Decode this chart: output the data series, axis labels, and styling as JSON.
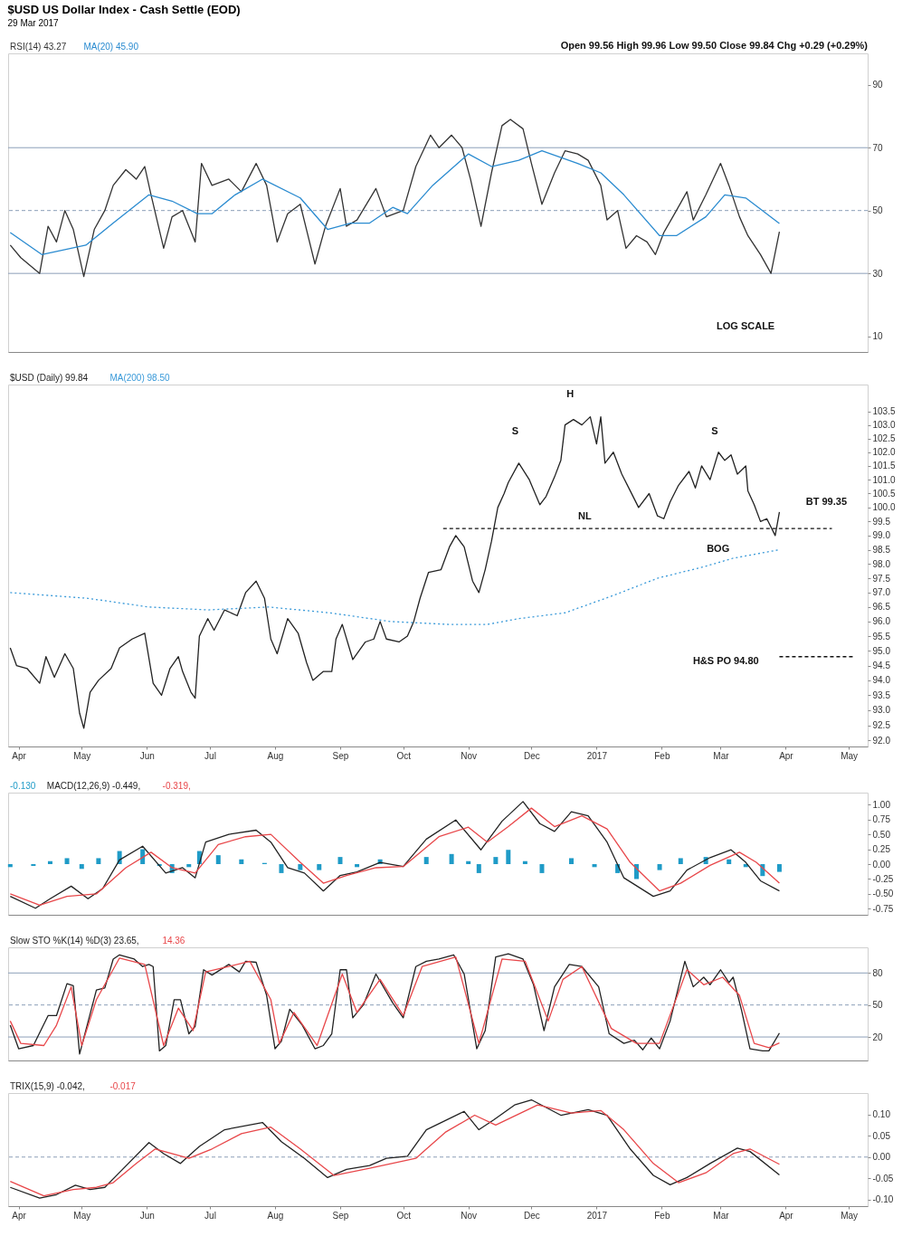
{
  "chart_data": [
    {
      "type": "line",
      "title": "$USD US Dollar Index - Cash Settle (EOD)",
      "subtitle": "29 Mar 2017",
      "legend": "top left",
      "tick_labels": "y",
      "annotations": [
        "Open 99.56  High 99.96  Low 99.50  Close 99.84  Chg +0.29 (+0.29%)",
        "LOG SCALE"
      ],
      "xlim": [
        "2016-03-27",
        "2017-05-10"
      ],
      "ylim": [
        5,
        100
      ],
      "yticks": [
        10,
        30,
        50,
        70,
        90
      ],
      "ref_lines": [
        {
          "axis": "y",
          "value": 70,
          "color": "#8c9fb8",
          "line_style": "solid"
        },
        {
          "axis": "y",
          "value": 50,
          "color": "#8c9fb8",
          "line_style": "dashed"
        },
        {
          "axis": "y",
          "value": 30,
          "color": "#8c9fb8",
          "line_style": "solid"
        }
      ],
      "series": [
        {
          "name": "RSI(14) 43.27",
          "color": "#333333",
          "x": [
            "2016-03-28",
            "2016-04-02",
            "2016-04-11",
            "2016-04-15",
            "2016-04-19",
            "2016-04-23",
            "2016-04-27",
            "2016-05-02",
            "2016-05-07",
            "2016-05-12",
            "2016-05-16",
            "2016-05-22",
            "2016-05-27",
            "2016-05-31",
            "2016-06-03",
            "2016-06-09",
            "2016-06-13",
            "2016-06-18",
            "2016-06-24",
            "2016-06-27",
            "2016-07-02",
            "2016-07-10",
            "2016-07-16",
            "2016-07-23",
            "2016-07-28",
            "2016-08-02",
            "2016-08-07",
            "2016-08-13",
            "2016-08-20",
            "2016-08-25",
            "2016-09-01",
            "2016-09-04",
            "2016-09-09",
            "2016-09-18",
            "2016-09-23",
            "2016-10-01",
            "2016-10-07",
            "2016-10-14",
            "2016-10-18",
            "2016-10-24",
            "2016-10-29",
            "2016-11-02",
            "2016-11-07",
            "2016-11-12",
            "2016-11-17",
            "2016-11-21",
            "2016-11-27",
            "2016-12-01",
            "2016-12-06",
            "2016-12-12",
            "2016-12-17",
            "2016-12-23",
            "2016-12-28",
            "2017-01-03",
            "2017-01-06",
            "2017-01-11",
            "2017-01-15",
            "2017-01-20",
            "2017-01-25",
            "2017-01-29",
            "2017-02-02",
            "2017-02-08",
            "2017-02-13",
            "2017-02-16",
            "2017-02-22",
            "2017-03-01",
            "2017-03-05",
            "2017-03-10",
            "2017-03-14",
            "2017-03-20",
            "2017-03-25",
            "2017-03-29"
          ],
          "values": [
            39,
            35,
            30,
            45,
            40,
            50,
            44,
            29,
            44,
            50,
            58,
            63,
            60,
            64,
            55,
            38,
            48,
            50,
            40,
            65,
            58,
            60,
            56,
            65,
            58,
            40,
            49,
            52,
            33,
            45,
            57,
            45,
            47,
            57,
            48,
            50,
            64,
            74,
            70,
            74,
            70,
            60,
            45,
            62,
            77,
            79,
            76,
            65,
            52,
            62,
            69,
            68,
            66,
            58,
            47,
            50,
            38,
            42,
            40,
            36,
            43,
            50,
            56,
            47,
            55,
            65,
            58,
            48,
            42,
            36,
            30,
            43.27
          ]
        },
        {
          "name": "MA(20) 45.90",
          "color": "#2a8bd0",
          "x": [
            "2016-03-28",
            "2016-04-12",
            "2016-05-03",
            "2016-05-16",
            "2016-06-02",
            "2016-06-13",
            "2016-06-25",
            "2016-07-02",
            "2016-07-13",
            "2016-07-26",
            "2016-08-13",
            "2016-08-26",
            "2016-09-06",
            "2016-09-15",
            "2016-09-26",
            "2016-10-03",
            "2016-10-15",
            "2016-11-01",
            "2016-11-12",
            "2016-11-25",
            "2016-12-06",
            "2016-12-23",
            "2017-01-03",
            "2017-01-14",
            "2017-01-31",
            "2017-02-08",
            "2017-02-22",
            "2017-03-03",
            "2017-03-13",
            "2017-03-29"
          ],
          "values": [
            43,
            36,
            39,
            46,
            55,
            53,
            49,
            49,
            55,
            60,
            54,
            44,
            46,
            46,
            51,
            49,
            58,
            68,
            64,
            66,
            69,
            65,
            62,
            55,
            42,
            42,
            48,
            55,
            54,
            45.9
          ]
        }
      ]
    },
    {
      "type": "line",
      "legend": "top left",
      "log": true,
      "xlim": [
        "2016-03-27",
        "2017-05-10"
      ],
      "xticks": [
        {
          "value": "2016-04-01",
          "label": "Apr"
        },
        {
          "value": "2016-05-01",
          "label": "May"
        },
        {
          "value": "2016-06-01",
          "label": "Jun"
        },
        {
          "value": "2016-07-01",
          "label": "Jul"
        },
        {
          "value": "2016-08-01",
          "label": "Aug"
        },
        {
          "value": "2016-09-01",
          "label": "Sep"
        },
        {
          "value": "2016-10-01",
          "label": "Oct"
        },
        {
          "value": "2016-11-01",
          "label": "Nov"
        },
        {
          "value": "2016-12-01",
          "label": "Dec"
        },
        {
          "value": "2017-01-01",
          "label": "2017"
        },
        {
          "value": "2017-02-01",
          "label": "Feb"
        },
        {
          "value": "2017-03-01",
          "label": "Mar"
        },
        {
          "value": "2017-04-01",
          "label": "Apr"
        },
        {
          "value": "2017-05-01",
          "label": "May"
        }
      ],
      "ylim": [
        91.8,
        104.5
      ],
      "yticks": [
        {
          "value": 92,
          "label": "92.0"
        },
        92.5,
        {
          "value": 93,
          "label": "93.0"
        },
        93.5,
        {
          "value": 94,
          "label": "94.0"
        },
        94.5,
        {
          "value": 95,
          "label": "95.0"
        },
        95.5,
        {
          "value": 96,
          "label": "96.0"
        },
        96.5,
        {
          "value": 97,
          "label": "97.0"
        },
        97.5,
        {
          "value": 98,
          "label": "98.0"
        },
        98.5,
        {
          "value": 99,
          "label": "99.0"
        },
        99.5,
        {
          "value": 100,
          "label": "100.0"
        },
        100.5,
        {
          "value": 101,
          "label": "101.0"
        },
        101.5,
        {
          "value": 102,
          "label": "102.0"
        },
        102.5,
        {
          "value": 103,
          "label": "103.0"
        },
        103.5
      ],
      "annotations": [
        "S",
        "H",
        "S",
        "NL",
        "BT 99.35",
        "BOG",
        "H&S PO 94.80"
      ],
      "series": [
        {
          "name": "$USD (Daily) 99.84",
          "color": "#222222",
          "x": [
            "2016-03-28",
            "2016-03-31",
            "2016-04-05",
            "2016-04-11",
            "2016-04-14",
            "2016-04-18",
            "2016-04-23",
            "2016-04-27",
            "2016-04-30",
            "2016-05-02",
            "2016-05-05",
            "2016-05-09",
            "2016-05-15",
            "2016-05-19",
            "2016-05-25",
            "2016-05-31",
            "2016-06-04",
            "2016-06-08",
            "2016-06-12",
            "2016-06-16",
            "2016-06-18",
            "2016-06-22",
            "2016-06-24",
            "2016-06-26",
            "2016-06-30",
            "2016-07-03",
            "2016-07-08",
            "2016-07-14",
            "2016-07-18",
            "2016-07-23",
            "2016-07-27",
            "2016-07-30",
            "2016-08-02",
            "2016-08-07",
            "2016-08-12",
            "2016-08-16",
            "2016-08-19",
            "2016-08-24",
            "2016-08-28",
            "2016-08-30",
            "2016-09-02",
            "2016-09-07",
            "2016-09-13",
            "2016-09-17",
            "2016-09-20",
            "2016-09-23",
            "2016-09-29",
            "2016-10-03",
            "2016-10-06",
            "2016-10-09",
            "2016-10-13",
            "2016-10-19",
            "2016-10-23",
            "2016-10-26",
            "2016-10-30",
            "2016-11-03",
            "2016-11-06",
            "2016-11-09",
            "2016-11-12",
            "2016-11-15",
            "2016-11-18",
            "2016-11-20",
            "2016-11-25",
            "2016-11-30",
            "2016-12-05",
            "2016-12-08",
            "2016-12-12",
            "2016-12-15",
            "2016-12-17",
            "2016-12-21",
            "2016-12-25",
            "2016-12-29",
            "2017-01-01",
            "2017-01-03",
            "2017-01-05",
            "2017-01-09",
            "2017-01-13",
            "2017-01-17",
            "2017-01-21",
            "2017-01-26",
            "2017-01-30",
            "2017-02-02",
            "2017-02-05",
            "2017-02-09",
            "2017-02-14",
            "2017-02-17",
            "2017-02-20",
            "2017-02-24",
            "2017-02-28",
            "2017-03-03",
            "2017-03-06",
            "2017-03-09",
            "2017-03-13",
            "2017-03-14",
            "2017-03-17",
            "2017-03-20",
            "2017-03-23",
            "2017-03-27",
            "2017-03-29"
          ],
          "values": [
            95.1,
            94.5,
            94.4,
            93.9,
            94.8,
            94.1,
            94.9,
            94.4,
            92.9,
            92.4,
            93.6,
            94.0,
            94.4,
            95.1,
            95.4,
            95.6,
            93.9,
            93.5,
            94.4,
            94.8,
            94.3,
            93.6,
            93.4,
            95.5,
            96.1,
            95.7,
            96.4,
            96.2,
            97.0,
            97.4,
            96.8,
            95.4,
            94.9,
            96.1,
            95.6,
            94.6,
            94.0,
            94.3,
            94.3,
            95.4,
            95.9,
            94.7,
            95.3,
            95.4,
            96.0,
            95.4,
            95.3,
            95.5,
            96.0,
            96.8,
            97.7,
            97.8,
            98.6,
            99.0,
            98.6,
            97.4,
            97.0,
            97.8,
            98.8,
            100.0,
            100.5,
            100.9,
            101.6,
            101.0,
            100.1,
            100.4,
            101.1,
            101.7,
            103.0,
            103.2,
            103.0,
            103.3,
            102.3,
            103.3,
            101.6,
            102.0,
            101.2,
            100.6,
            100.0,
            100.5,
            99.7,
            99.6,
            100.2,
            100.8,
            101.3,
            100.7,
            101.5,
            101.0,
            102.0,
            101.7,
            101.9,
            101.2,
            101.5,
            100.6,
            100.1,
            99.5,
            99.6,
            99.0,
            99.84
          ]
        },
        {
          "name": "MA(200) 98.50",
          "color": "#3a9ad9",
          "line_style": "dotted",
          "x": [
            "2016-03-28",
            "2016-05-04",
            "2016-06-02",
            "2016-06-30",
            "2016-07-29",
            "2016-08-27",
            "2016-09-25",
            "2016-10-23",
            "2016-11-10",
            "2016-11-25",
            "2016-12-17",
            "2017-01-09",
            "2017-01-30",
            "2017-02-21",
            "2017-03-07",
            "2017-03-29"
          ],
          "values": [
            97.0,
            96.8,
            96.5,
            96.4,
            96.5,
            96.3,
            96.0,
            95.9,
            95.9,
            96.1,
            96.3,
            96.9,
            97.5,
            97.9,
            98.2,
            98.5
          ]
        },
        {
          "color": "#111111",
          "line_style": "dashed",
          "x": [
            "2016-10-20",
            "2017-04-23"
          ],
          "values": [
            99.25,
            99.25
          ]
        },
        {
          "color": "#111111",
          "line_style": "dashed",
          "x": [
            "2017-03-29",
            "2017-05-04"
          ],
          "values": [
            94.8,
            94.8
          ]
        }
      ]
    },
    {
      "type": "line",
      "legend": "top left",
      "tick_labels": "y",
      "xlim": [
        "2016-03-27",
        "2017-05-10"
      ],
      "ylim": [
        -0.85,
        1.2
      ],
      "yticks": [
        -0.75,
        {
          "value": -0.5,
          "label": "-0.50"
        },
        -0.25,
        {
          "value": 0,
          "label": "0.00"
        },
        0.25,
        {
          "value": 0.5,
          "label": "0.50"
        },
        0.75,
        {
          "value": 1,
          "label": "1.00"
        }
      ],
      "series": [
        {
          "name": "-0.130",
          "type": "bar",
          "color": "#1f9bc7",
          "x": [
            "2016-03-28",
            "2016-04-08",
            "2016-04-16",
            "2016-04-24",
            "2016-05-01",
            "2016-05-09",
            "2016-05-19",
            "2016-05-30",
            "2016-06-07",
            "2016-06-13",
            "2016-06-21",
            "2016-06-26",
            "2016-07-05",
            "2016-07-16",
            "2016-07-27",
            "2016-08-04",
            "2016-08-13",
            "2016-08-22",
            "2016-09-01",
            "2016-09-09",
            "2016-09-20",
            "2016-10-01",
            "2016-10-12",
            "2016-10-24",
            "2016-11-01",
            "2016-11-06",
            "2016-11-14",
            "2016-11-20",
            "2016-11-28",
            "2016-12-06",
            "2016-12-20",
            "2016-12-31",
            "2017-01-11",
            "2017-01-20",
            "2017-01-31",
            "2017-02-10",
            "2017-02-22",
            "2017-03-05",
            "2017-03-13",
            "2017-03-21",
            "2017-03-29"
          ],
          "values": [
            -0.05,
            -0.03,
            0.05,
            0.1,
            -0.08,
            0.1,
            0.22,
            0.25,
            -0.03,
            -0.15,
            -0.05,
            0.22,
            0.15,
            0.08,
            0.02,
            -0.15,
            -0.1,
            -0.1,
            0.12,
            -0.05,
            0.08,
            0.0,
            0.12,
            0.17,
            0.05,
            -0.15,
            0.12,
            0.24,
            0.05,
            -0.15,
            0.1,
            -0.05,
            -0.15,
            -0.25,
            -0.1,
            0.1,
            0.12,
            0.08,
            -0.05,
            -0.2,
            -0.13
          ]
        },
        {
          "name": "MACD(12,26,9) -0.449,",
          "color": "#222222",
          "x": [
            "2016-03-28",
            "2016-04-09",
            "2016-04-16",
            "2016-04-26",
            "2016-05-04",
            "2016-05-11",
            "2016-05-19",
            "2016-05-30",
            "2016-06-10",
            "2016-06-18",
            "2016-06-24",
            "2016-06-29",
            "2016-07-10",
            "2016-07-23",
            "2016-07-30",
            "2016-08-07",
            "2016-08-15",
            "2016-08-24",
            "2016-09-01",
            "2016-09-09",
            "2016-09-20",
            "2016-10-01",
            "2016-10-12",
            "2016-10-26",
            "2016-11-07",
            "2016-11-17",
            "2016-11-27",
            "2016-12-05",
            "2016-12-12",
            "2016-12-20",
            "2016-12-28",
            "2017-01-06",
            "2017-01-14",
            "2017-01-28",
            "2017-02-05",
            "2017-02-13",
            "2017-02-24",
            "2017-03-06",
            "2017-03-13",
            "2017-03-20",
            "2017-03-29"
          ],
          "values": [
            -0.54,
            -0.74,
            -0.58,
            -0.37,
            -0.58,
            -0.41,
            0.07,
            0.3,
            -0.15,
            -0.06,
            -0.23,
            0.37,
            0.5,
            0.57,
            0.37,
            -0.06,
            -0.15,
            -0.45,
            -0.19,
            -0.13,
            0.03,
            -0.04,
            0.42,
            0.74,
            0.24,
            0.72,
            1.05,
            0.68,
            0.55,
            0.88,
            0.81,
            0.37,
            -0.23,
            -0.54,
            -0.45,
            -0.1,
            0.11,
            0.24,
            0.03,
            -0.28,
            -0.449
          ]
        },
        {
          "name": "-0.319,",
          "color": "#e8474a",
          "x": [
            "2016-03-28",
            "2016-04-11",
            "2016-04-24",
            "2016-05-08",
            "2016-05-22",
            "2016-06-03",
            "2016-06-13",
            "2016-06-24",
            "2016-07-05",
            "2016-07-18",
            "2016-07-30",
            "2016-08-13",
            "2016-08-24",
            "2016-09-04",
            "2016-09-18",
            "2016-10-01",
            "2016-10-18",
            "2016-11-01",
            "2016-11-10",
            "2016-11-20",
            "2016-12-01",
            "2016-12-12",
            "2016-12-25",
            "2017-01-06",
            "2017-01-17",
            "2017-01-31",
            "2017-02-10",
            "2017-02-24",
            "2017-03-10",
            "2017-03-18",
            "2017-03-29"
          ],
          "values": [
            -0.5,
            -0.69,
            -0.54,
            -0.5,
            -0.06,
            0.2,
            -0.06,
            -0.15,
            0.33,
            0.46,
            0.5,
            0.03,
            -0.32,
            -0.19,
            -0.06,
            -0.04,
            0.46,
            0.62,
            0.37,
            0.63,
            0.94,
            0.63,
            0.81,
            0.59,
            0.03,
            -0.45,
            -0.32,
            -0.02,
            0.2,
            0.03,
            -0.319
          ]
        }
      ]
    },
    {
      "type": "line",
      "legend": "top left",
      "tick_labels": "y",
      "xlim": [
        "2016-03-27",
        "2017-05-10"
      ],
      "ylim": [
        -2,
        104
      ],
      "yticks": [
        20,
        50,
        80
      ],
      "ref_lines": [
        {
          "axis": "y",
          "value": 80,
          "color": "#8c9fb8",
          "line_style": "solid"
        },
        {
          "axis": "y",
          "value": 50,
          "color": "#8c9fb8",
          "line_style": "dashed"
        },
        {
          "axis": "y",
          "value": 20,
          "color": "#8c9fb8",
          "line_style": "solid"
        }
      ],
      "series": [
        {
          "name": "Slow STO %K(14) %D(3) 23.65,",
          "color": "#222222",
          "x": [
            "2016-03-28",
            "2016-04-01",
            "2016-04-08",
            "2016-04-15",
            "2016-04-19",
            "2016-04-24",
            "2016-04-27",
            "2016-04-30",
            "2016-05-08",
            "2016-05-12",
            "2016-05-16",
            "2016-05-19",
            "2016-05-26",
            "2016-05-30",
            "2016-06-02",
            "2016-06-04",
            "2016-06-07",
            "2016-06-10",
            "2016-06-14",
            "2016-06-17",
            "2016-06-21",
            "2016-06-24",
            "2016-06-28",
            "2016-07-02",
            "2016-07-10",
            "2016-07-15",
            "2016-07-18",
            "2016-07-23",
            "2016-07-28",
            "2016-08-01",
            "2016-08-04",
            "2016-08-08",
            "2016-08-14",
            "2016-08-20",
            "2016-08-24",
            "2016-08-28",
            "2016-09-01",
            "2016-09-04",
            "2016-09-07",
            "2016-09-12",
            "2016-09-18",
            "2016-09-26",
            "2016-10-01",
            "2016-10-07",
            "2016-10-12",
            "2016-10-18",
            "2016-10-25",
            "2016-10-30",
            "2016-11-05",
            "2016-11-09",
            "2016-11-14",
            "2016-11-20",
            "2016-11-27",
            "2016-12-02",
            "2016-12-07",
            "2016-12-12",
            "2016-12-19",
            "2016-12-25",
            "2017-01-02",
            "2017-01-07",
            "2017-01-14",
            "2017-01-19",
            "2017-01-23",
            "2017-01-27",
            "2017-01-31",
            "2017-02-05",
            "2017-02-12",
            "2017-02-16",
            "2017-02-21",
            "2017-02-24",
            "2017-03-01",
            "2017-03-05",
            "2017-03-07",
            "2017-03-11",
            "2017-03-15",
            "2017-03-21",
            "2017-03-24",
            "2017-03-29"
          ],
          "values": [
            31,
            9,
            12,
            40,
            40,
            70,
            68,
            4,
            64,
            66,
            93,
            97,
            93,
            86,
            88,
            86,
            7,
            12,
            55,
            55,
            23,
            30,
            83,
            78,
            88,
            81,
            91,
            90,
            59,
            9,
            16,
            46,
            31,
            9,
            12,
            23,
            83,
            83,
            38,
            50,
            79,
            52,
            38,
            86,
            91,
            93,
            97,
            79,
            9,
            26,
            95,
            98,
            93,
            69,
            26,
            67,
            88,
            86,
            67,
            23,
            14,
            17,
            8,
            19,
            9,
            35,
            91,
            67,
            76,
            69,
            83,
            71,
            76,
            45,
            9,
            7,
            7,
            23.65
          ]
        },
        {
          "name": "14.36",
          "color": "#e8474a",
          "x": [
            "2016-03-28",
            "2016-04-02",
            "2016-04-13",
            "2016-04-19",
            "2016-04-26",
            "2016-05-01",
            "2016-05-08",
            "2016-05-19",
            "2016-05-31",
            "2016-06-09",
            "2016-06-16",
            "2016-06-23",
            "2016-06-29",
            "2016-07-10",
            "2016-07-20",
            "2016-07-30",
            "2016-08-03",
            "2016-08-10",
            "2016-08-21",
            "2016-09-02",
            "2016-09-09",
            "2016-09-20",
            "2016-10-01",
            "2016-10-10",
            "2016-10-26",
            "2016-11-06",
            "2016-11-17",
            "2016-11-28",
            "2016-12-09",
            "2016-12-16",
            "2016-12-25",
            "2017-01-08",
            "2017-01-20",
            "2017-01-31",
            "2017-02-13",
            "2017-02-21",
            "2017-03-02",
            "2017-03-10",
            "2017-03-17",
            "2017-03-24",
            "2017-03-29"
          ],
          "values": [
            35,
            14,
            12,
            31,
            67,
            12,
            55,
            94,
            88,
            12,
            47,
            26,
            81,
            86,
            91,
            55,
            14,
            43,
            12,
            79,
            43,
            74,
            40,
            86,
            95,
            14,
            93,
            91,
            35,
            74,
            86,
            28,
            14,
            14,
            83,
            69,
            76,
            59,
            14,
            10,
            14.36
          ]
        }
      ]
    },
    {
      "type": "line",
      "legend": "top left",
      "xlim": [
        "2016-03-27",
        "2017-05-10"
      ],
      "xticks": [
        {
          "value": "2016-04-01",
          "label": "Apr"
        },
        {
          "value": "2016-05-01",
          "label": "May"
        },
        {
          "value": "2016-06-01",
          "label": "Jun"
        },
        {
          "value": "2016-07-01",
          "label": "Jul"
        },
        {
          "value": "2016-08-01",
          "label": "Aug"
        },
        {
          "value": "2016-09-01",
          "label": "Sep"
        },
        {
          "value": "2016-10-01",
          "label": "Oct"
        },
        {
          "value": "2016-11-01",
          "label": "Nov"
        },
        {
          "value": "2016-12-01",
          "label": "Dec"
        },
        {
          "value": "2017-01-01",
          "label": "2017"
        },
        {
          "value": "2017-02-01",
          "label": "Feb"
        },
        {
          "value": "2017-03-01",
          "label": "Mar"
        },
        {
          "value": "2017-04-01",
          "label": "Apr"
        },
        {
          "value": "2017-05-01",
          "label": "May"
        }
      ],
      "ylim": [
        -0.115,
        0.15
      ],
      "yticks": [
        {
          "value": -0.1,
          "label": "-0.10"
        },
        -0.05,
        {
          "value": 0,
          "label": "0.00"
        },
        0.05,
        {
          "value": 0.1,
          "label": "0.10"
        }
      ],
      "ref_lines": [
        {
          "axis": "y",
          "value": 0,
          "color": "#8c9fb8",
          "line_style": "dashed"
        }
      ],
      "series": [
        {
          "name": "TRIX(15,9) -0.042,",
          "color": "#222222",
          "x": [
            "2016-03-28",
            "2016-04-11",
            "2016-04-19",
            "2016-04-28",
            "2016-05-05",
            "2016-05-12",
            "2016-05-20",
            "2016-06-02",
            "2016-06-09",
            "2016-06-17",
            "2016-06-26",
            "2016-07-08",
            "2016-07-26",
            "2016-08-04",
            "2016-08-15",
            "2016-08-26",
            "2016-09-04",
            "2016-09-15",
            "2016-09-23",
            "2016-10-03",
            "2016-10-12",
            "2016-10-30",
            "2016-11-06",
            "2016-11-13",
            "2016-11-23",
            "2016-12-01",
            "2016-12-15",
            "2016-12-28",
            "2017-01-06",
            "2017-01-17",
            "2017-01-28",
            "2017-02-05",
            "2017-02-13",
            "2017-02-24",
            "2017-03-09",
            "2017-03-15",
            "2017-03-29"
          ],
          "values": [
            -0.071,
            -0.096,
            -0.088,
            -0.066,
            -0.076,
            -0.071,
            -0.031,
            0.034,
            0.008,
            -0.015,
            0.025,
            0.064,
            0.081,
            0.036,
            -0.003,
            -0.048,
            -0.029,
            -0.02,
            -0.003,
            0.002,
            0.064,
            0.107,
            0.064,
            0.087,
            0.122,
            0.134,
            0.098,
            0.111,
            0.098,
            0.019,
            -0.043,
            -0.065,
            -0.048,
            -0.015,
            0.021,
            0.013,
            -0.042
          ]
        },
        {
          "name": "-0.017",
          "color": "#e8474a",
          "x": [
            "2016-03-28",
            "2016-04-13",
            "2016-04-27",
            "2016-05-08",
            "2016-05-16",
            "2016-05-27",
            "2016-06-05",
            "2016-06-21",
            "2016-07-02",
            "2016-07-16",
            "2016-07-30",
            "2016-08-13",
            "2016-08-29",
            "2016-09-15",
            "2016-10-07",
            "2016-10-21",
            "2016-11-04",
            "2016-11-14",
            "2016-12-04",
            "2016-12-20",
            "2017-01-03",
            "2017-01-14",
            "2017-01-28",
            "2017-02-09",
            "2017-02-22",
            "2017-03-07",
            "2017-03-15",
            "2017-03-29"
          ],
          "values": [
            -0.057,
            -0.091,
            -0.076,
            -0.071,
            -0.06,
            -0.015,
            0.019,
            -0.003,
            0.019,
            0.055,
            0.07,
            0.019,
            -0.043,
            -0.026,
            -0.003,
            0.058,
            0.098,
            0.075,
            0.122,
            0.103,
            0.109,
            0.064,
            -0.015,
            -0.06,
            -0.037,
            0.008,
            0.019,
            -0.017
          ]
        }
      ]
    }
  ]
}
